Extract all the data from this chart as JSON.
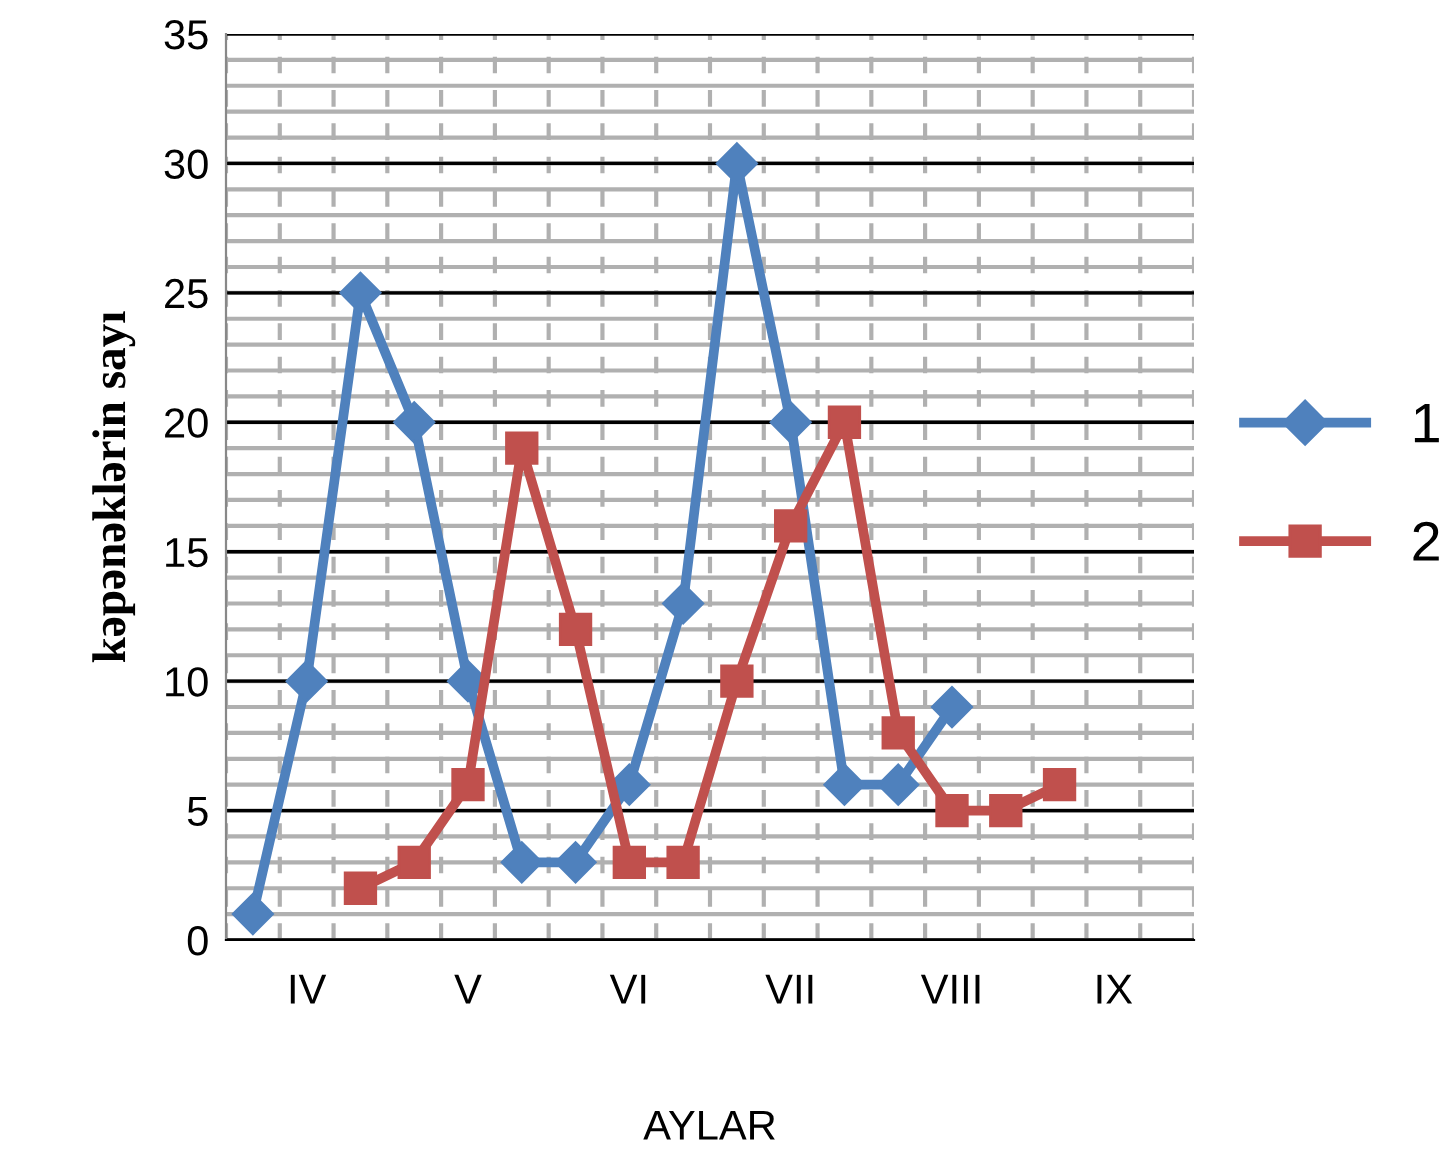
{
  "chart_data": {
    "type": "line",
    "xlabel": "AYLAR",
    "ylabel": "kəpənəklərin sayı",
    "categories": [
      null,
      "IV",
      null,
      null,
      "V",
      null,
      null,
      "VI",
      null,
      null,
      "VII",
      null,
      null,
      "VIII",
      null,
      null,
      "IX",
      null
    ],
    "series": [
      {
        "name": "1",
        "color": "#4f81bd",
        "marker": "diamond",
        "values": [
          1,
          10,
          25,
          20,
          10,
          3,
          3,
          6,
          13,
          30,
          20,
          6,
          6,
          9,
          null,
          null,
          null,
          null
        ]
      },
      {
        "name": "2",
        "color": "#c0504d",
        "marker": "square",
        "values": [
          null,
          null,
          2,
          3,
          6,
          19,
          12,
          3,
          3,
          10,
          16,
          20,
          8,
          5,
          5,
          6,
          null,
          null
        ]
      }
    ],
    "ylim": [
      0,
      35
    ],
    "yticks": [
      0,
      5,
      10,
      15,
      20,
      25,
      30,
      35
    ],
    "grid": true,
    "legend": "right",
    "line_style": "solid"
  }
}
